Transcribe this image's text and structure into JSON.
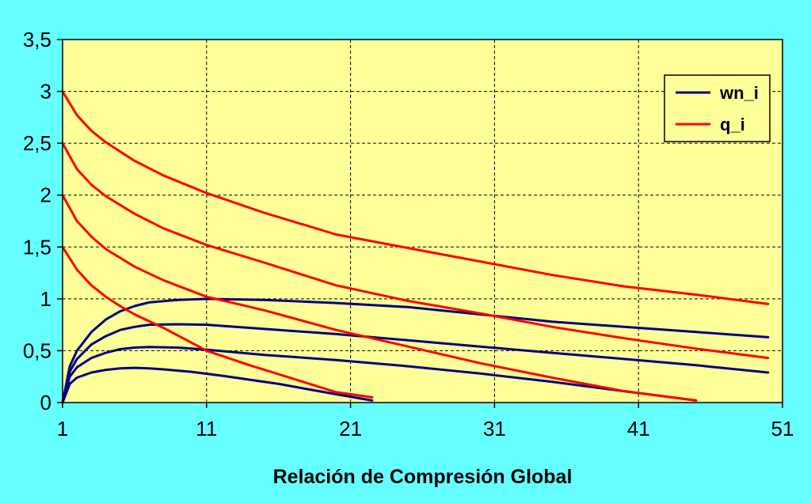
{
  "chart_data": {
    "type": "line",
    "title": "",
    "xlabel": "Relación de Compresión Global",
    "ylabel": "",
    "xlim": [
      1,
      51
    ],
    "ylim": [
      0,
      3.5
    ],
    "x_ticks": [
      1,
      11,
      21,
      31,
      41,
      51
    ],
    "x_tick_labels": [
      "1",
      "11",
      "21",
      "31",
      "41",
      "51"
    ],
    "y_ticks": [
      0,
      0.5,
      1,
      1.5,
      2,
      2.5,
      3,
      3.5
    ],
    "y_tick_labels": [
      "0",
      "0,5",
      "1",
      "1,5",
      "2",
      "2,5",
      "3",
      "3,5"
    ],
    "grid": true,
    "legend_position": "top-right",
    "legend": [
      {
        "label": "wn_i",
        "color": "#000080"
      },
      {
        "label": "q_i",
        "color": "#ff0000"
      }
    ],
    "colors": {
      "page_background": "#66ffff",
      "plot_background": "#ffff99",
      "wn_i": "#000080",
      "q_i": "#ff0000"
    },
    "series": [
      {
        "group": "wn_i",
        "color": "#000080",
        "points": [
          [
            1,
            0
          ],
          [
            1.5,
            0.18
          ],
          [
            2,
            0.24
          ],
          [
            3,
            0.29
          ],
          [
            4,
            0.315
          ],
          [
            5,
            0.33
          ],
          [
            6,
            0.335
          ],
          [
            7,
            0.33
          ],
          [
            8,
            0.32
          ],
          [
            10,
            0.295
          ],
          [
            12,
            0.26
          ],
          [
            14,
            0.22
          ],
          [
            16,
            0.18
          ],
          [
            18,
            0.13
          ],
          [
            20,
            0.08
          ],
          [
            22.5,
            0.02
          ]
        ]
      },
      {
        "group": "wn_i",
        "color": "#000080",
        "points": [
          [
            1,
            0
          ],
          [
            1.5,
            0.25
          ],
          [
            2,
            0.34
          ],
          [
            3,
            0.43
          ],
          [
            4,
            0.48
          ],
          [
            5,
            0.515
          ],
          [
            6,
            0.53
          ],
          [
            7,
            0.535
          ],
          [
            9,
            0.53
          ],
          [
            11,
            0.51
          ],
          [
            15,
            0.46
          ],
          [
            20,
            0.41
          ],
          [
            25,
            0.35
          ],
          [
            30,
            0.28
          ],
          [
            35,
            0.2
          ],
          [
            40,
            0.11
          ],
          [
            45,
            0.02
          ]
        ]
      },
      {
        "group": "wn_i",
        "color": "#000080",
        "points": [
          [
            1,
            0
          ],
          [
            1.5,
            0.3
          ],
          [
            2,
            0.42
          ],
          [
            3,
            0.56
          ],
          [
            4,
            0.64
          ],
          [
            5,
            0.7
          ],
          [
            6,
            0.73
          ],
          [
            7,
            0.75
          ],
          [
            9,
            0.755
          ],
          [
            11,
            0.75
          ],
          [
            15,
            0.71
          ],
          [
            20,
            0.66
          ],
          [
            25,
            0.6
          ],
          [
            30,
            0.54
          ],
          [
            35,
            0.48
          ],
          [
            40,
            0.42
          ],
          [
            45,
            0.36
          ],
          [
            50,
            0.29
          ]
        ]
      },
      {
        "group": "wn_i",
        "color": "#000080",
        "points": [
          [
            1,
            0
          ],
          [
            1.5,
            0.35
          ],
          [
            2,
            0.5
          ],
          [
            3,
            0.68
          ],
          [
            4,
            0.8
          ],
          [
            5,
            0.88
          ],
          [
            6,
            0.93
          ],
          [
            7,
            0.965
          ],
          [
            9,
            0.99
          ],
          [
            11,
            1.0
          ],
          [
            15,
            0.99
          ],
          [
            20,
            0.96
          ],
          [
            25,
            0.92
          ],
          [
            30,
            0.85
          ],
          [
            35,
            0.78
          ],
          [
            40,
            0.73
          ],
          [
            45,
            0.68
          ],
          [
            50,
            0.63
          ]
        ]
      },
      {
        "group": "q_i",
        "color": "#ff0000",
        "points": [
          [
            1,
            1.5
          ],
          [
            2,
            1.28
          ],
          [
            3,
            1.13
          ],
          [
            4,
            1.02
          ],
          [
            5,
            0.93
          ],
          [
            6,
            0.85
          ],
          [
            8,
            0.72
          ],
          [
            11,
            0.5
          ],
          [
            14,
            0.36
          ],
          [
            17,
            0.23
          ],
          [
            20,
            0.1
          ],
          [
            22.5,
            0.05
          ]
        ]
      },
      {
        "group": "q_i",
        "color": "#ff0000",
        "points": [
          [
            1,
            2.0
          ],
          [
            2,
            1.75
          ],
          [
            3,
            1.6
          ],
          [
            4,
            1.48
          ],
          [
            6,
            1.31
          ],
          [
            8,
            1.18
          ],
          [
            11,
            1.02
          ],
          [
            15,
            0.89
          ],
          [
            20,
            0.7
          ],
          [
            25,
            0.54
          ],
          [
            30,
            0.38
          ],
          [
            35,
            0.24
          ],
          [
            40,
            0.11
          ],
          [
            45,
            0.02
          ]
        ]
      },
      {
        "group": "q_i",
        "color": "#ff0000",
        "points": [
          [
            1,
            2.5
          ],
          [
            2,
            2.25
          ],
          [
            3,
            2.1
          ],
          [
            4,
            1.99
          ],
          [
            6,
            1.82
          ],
          [
            8,
            1.68
          ],
          [
            11,
            1.52
          ],
          [
            15,
            1.35
          ],
          [
            20,
            1.13
          ],
          [
            25,
            0.98
          ],
          [
            30,
            0.86
          ],
          [
            35,
            0.73
          ],
          [
            40,
            0.62
          ],
          [
            45,
            0.52
          ],
          [
            50,
            0.43
          ]
        ]
      },
      {
        "group": "q_i",
        "color": "#ff0000",
        "points": [
          [
            1,
            3.0
          ],
          [
            2,
            2.77
          ],
          [
            3,
            2.62
          ],
          [
            4,
            2.51
          ],
          [
            6,
            2.33
          ],
          [
            8,
            2.19
          ],
          [
            11,
            2.02
          ],
          [
            15,
            1.83
          ],
          [
            20,
            1.62
          ],
          [
            25,
            1.49
          ],
          [
            30,
            1.36
          ],
          [
            35,
            1.23
          ],
          [
            40,
            1.12
          ],
          [
            45,
            1.04
          ],
          [
            50,
            0.95
          ]
        ]
      }
    ]
  }
}
